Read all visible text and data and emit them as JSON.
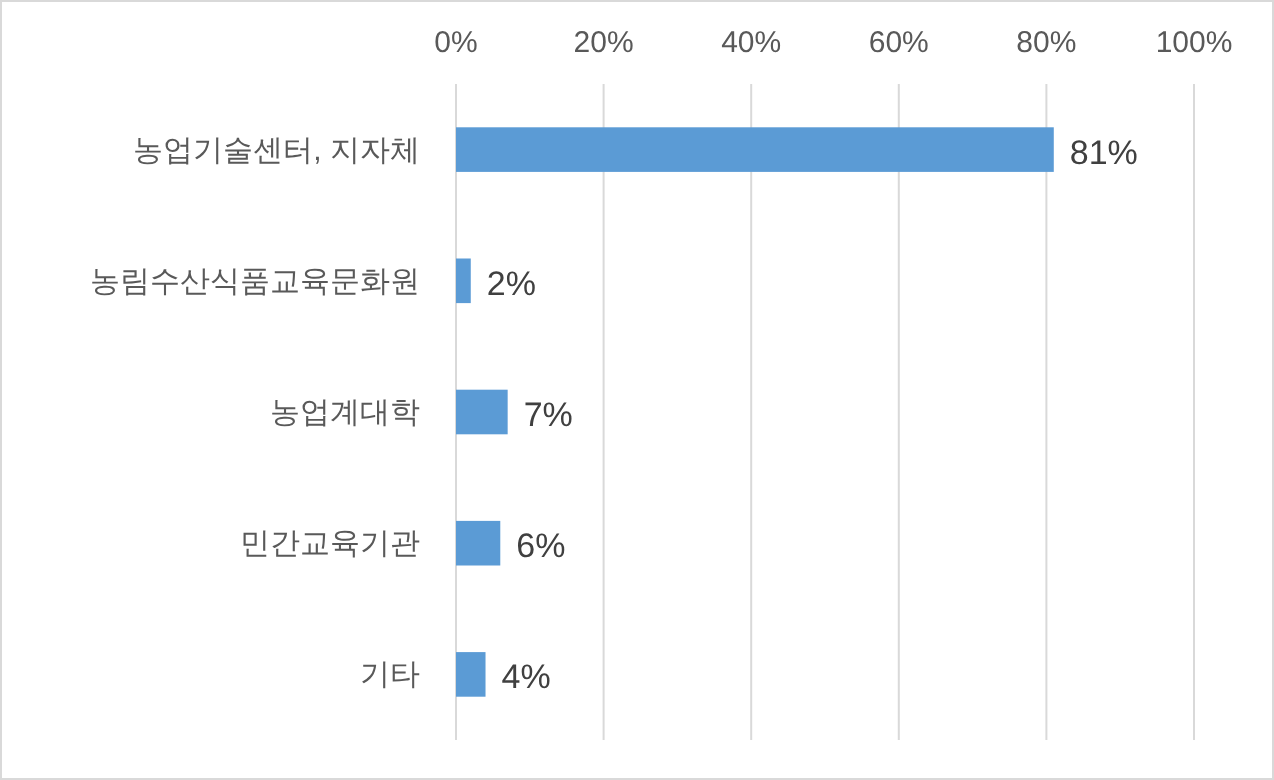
{
  "chart_data": {
    "type": "bar",
    "orientation": "horizontal",
    "categories": [
      "농업기술센터, 지자체",
      "농림수산식품교육문화원",
      "농업계대학",
      "민간교육기관",
      "기타"
    ],
    "values": [
      81,
      2,
      7,
      6,
      4
    ],
    "value_labels": [
      "81%",
      "2%",
      "7%",
      "6%",
      "4%"
    ],
    "color": "#5b9bd5",
    "xlim": [
      0,
      100
    ],
    "xticks": [
      {
        "value": 0,
        "label": "0%"
      },
      {
        "value": 20,
        "label": "20%"
      },
      {
        "value": 40,
        "label": "40%"
      },
      {
        "value": 60,
        "label": "60%"
      },
      {
        "value": 80,
        "label": "80%"
      },
      {
        "value": 100,
        "label": "100%"
      }
    ],
    "grid": "x"
  }
}
